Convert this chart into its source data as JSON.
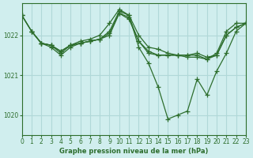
{
  "background_color": "#d0eeee",
  "grid_color": "#b0d8d8",
  "line_color": "#2d6e2d",
  "title": "Graphe pression niveau de la mer (hPa)",
  "xlim": [
    0,
    23
  ],
  "ylim": [
    1019.5,
    1022.8
  ],
  "yticks": [
    1020,
    1021,
    1022
  ],
  "xticks": [
    0,
    1,
    2,
    3,
    4,
    5,
    6,
    7,
    8,
    9,
    10,
    11,
    12,
    13,
    14,
    15,
    16,
    17,
    18,
    19,
    20,
    21,
    22,
    23
  ],
  "series": [
    {
      "x": [
        0,
        1,
        2,
        3,
        4,
        5,
        6,
        7,
        8,
        9,
        10,
        11,
        12,
        13,
        14,
        15,
        16,
        17,
        18,
        19,
        20,
        21,
        22,
        23
      ],
      "y": [
        1022.5,
        1022.1,
        1021.8,
        1021.75,
        1021.6,
        1021.75,
        1021.8,
        1021.85,
        1021.9,
        1022.05,
        1022.55,
        1022.4,
        1021.85,
        1021.6,
        1021.5,
        1021.5,
        1021.5,
        1021.45,
        1021.45,
        1021.4,
        1021.55,
        1022.1,
        1022.3,
        1022.3
      ]
    },
    {
      "x": [
        0,
        1,
        2,
        3,
        4,
        5,
        6,
        7,
        8,
        9,
        10,
        11,
        12,
        13,
        14,
        15,
        16,
        17,
        18,
        19,
        20,
        21,
        22,
        23
      ],
      "y": [
        1022.5,
        1022.1,
        1021.8,
        1021.75,
        1021.55,
        1021.75,
        1021.85,
        1021.9,
        1022.0,
        1022.3,
        1022.65,
        1022.5,
        1021.7,
        1021.3,
        1020.7,
        1019.9,
        1020.0,
        1020.1,
        1020.9,
        1020.5,
        1021.1,
        1021.55,
        1022.1,
        1022.3
      ]
    },
    {
      "x": [
        0,
        1,
        2,
        3,
        4,
        5,
        6,
        7,
        8,
        9,
        10,
        11,
        12,
        13,
        14,
        15,
        16,
        17,
        18,
        19,
        20,
        21,
        22,
        23
      ],
      "y": [
        1022.5,
        1022.1,
        1021.8,
        1021.75,
        1021.6,
        1021.75,
        1021.8,
        1021.85,
        1021.9,
        1022.1,
        1022.6,
        1022.5,
        1022.0,
        1021.7,
        1021.65,
        1021.55,
        1021.5,
        1021.5,
        1021.5,
        1021.4,
        1021.5,
        1022.0,
        1022.2,
        1022.3
      ]
    },
    {
      "x": [
        1,
        2,
        3,
        4,
        5,
        6,
        7,
        8,
        9,
        10,
        11,
        12,
        13,
        14,
        15,
        16,
        17,
        18,
        19,
        20,
        21,
        22,
        23
      ],
      "y": [
        1022.1,
        1021.8,
        1021.7,
        1021.5,
        1021.7,
        1021.8,
        1021.85,
        1021.9,
        1022.0,
        1022.55,
        1022.45,
        1021.85,
        1021.55,
        1021.5,
        1021.5,
        1021.5,
        1021.5,
        1021.55,
        1021.45,
        1021.5,
        1022.0,
        1022.2,
        1022.3
      ]
    }
  ]
}
